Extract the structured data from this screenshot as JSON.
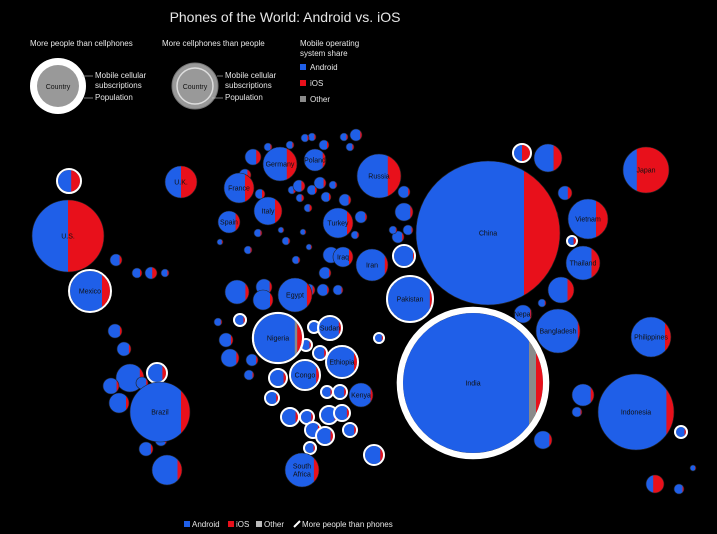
{
  "chart_data": {
    "type": "bubble-map",
    "title": "Phones of the World: Android vs. iOS",
    "legend": {
      "more_people_title": "More people than cellphones",
      "more_phones_title": "More cellphones than people",
      "os_title_line1": "Mobile operating",
      "os_title_line2": "system share",
      "sample_country": "Country",
      "mobile_line1": "Mobile cellular",
      "mobile_line2": "subscriptions",
      "population": "Population",
      "android": "Android",
      "ios": "iOS",
      "other": "Other"
    },
    "bottom_legend": {
      "android": "Android",
      "ios": "iOS",
      "other": "Other",
      "more_people": "More people than phones"
    },
    "colors": {
      "android": "#1f5fe8",
      "ios": "#e8101b",
      "other": "#8a8a8a",
      "outline": "#ffffff",
      "background": "#000000"
    },
    "countries": [
      {
        "name": "U.S.",
        "android": 0.5,
        "ios": 0.5,
        "other": 0,
        "more_people": false
      },
      {
        "name": "Mexico",
        "android": 0.8,
        "ios": 0.2,
        "other": 0,
        "more_people": true
      },
      {
        "name": "Brazil",
        "android": 0.85,
        "ios": 0.15,
        "other": 0,
        "more_people": false
      },
      {
        "name": "U.K.",
        "android": 0.5,
        "ios": 0.5,
        "other": 0,
        "more_people": false
      },
      {
        "name": "France",
        "android": 0.7,
        "ios": 0.3,
        "other": 0,
        "more_people": false
      },
      {
        "name": "Spain",
        "android": 0.8,
        "ios": 0.2,
        "other": 0,
        "more_people": false
      },
      {
        "name": "Germany",
        "android": 0.7,
        "ios": 0.3,
        "other": 0,
        "more_people": false
      },
      {
        "name": "Italy",
        "android": 0.75,
        "ios": 0.25,
        "other": 0,
        "more_people": false
      },
      {
        "name": "Poland",
        "android": 0.85,
        "ios": 0.15,
        "other": 0,
        "more_people": false
      },
      {
        "name": "Russia",
        "android": 0.7,
        "ios": 0.3,
        "other": 0,
        "more_people": false
      },
      {
        "name": "Turkey",
        "android": 0.8,
        "ios": 0.2,
        "other": 0,
        "more_people": false
      },
      {
        "name": "Iraq",
        "android": 0.8,
        "ios": 0.2,
        "other": 0,
        "more_people": false
      },
      {
        "name": "Iran",
        "android": 0.9,
        "ios": 0.1,
        "other": 0,
        "more_people": false
      },
      {
        "name": "Egypt",
        "android": 0.85,
        "ios": 0.15,
        "other": 0,
        "more_people": false
      },
      {
        "name": "Pakistan",
        "android": 0.95,
        "ios": 0.05,
        "other": 0,
        "more_people": true
      },
      {
        "name": "China",
        "android": 0.75,
        "ios": 0.25,
        "other": 0,
        "more_people": false
      },
      {
        "name": "India",
        "android": 0.9,
        "ios": 0.05,
        "other": 0.05,
        "more_people": true
      },
      {
        "name": "Nepal",
        "android": 0.9,
        "ios": 0.1,
        "other": 0,
        "more_people": false
      },
      {
        "name": "Bangladesh",
        "android": 0.95,
        "ios": 0.05,
        "other": 0,
        "more_people": false
      },
      {
        "name": "Vietnam",
        "android": 0.7,
        "ios": 0.3,
        "other": 0,
        "more_people": false
      },
      {
        "name": "Thailand",
        "android": 0.75,
        "ios": 0.25,
        "other": 0,
        "more_people": false
      },
      {
        "name": "Japan",
        "android": 0.3,
        "ios": 0.7,
        "other": 0,
        "more_people": false
      },
      {
        "name": "Philippines",
        "android": 0.85,
        "ios": 0.15,
        "other": 0,
        "more_people": false
      },
      {
        "name": "Indonesia",
        "android": 0.9,
        "ios": 0.1,
        "other": 0,
        "more_people": false
      },
      {
        "name": "Nigeria",
        "android": 0.85,
        "ios": 0.1,
        "other": 0.05,
        "more_people": true
      },
      {
        "name": "Sudan",
        "android": 0.9,
        "ios": 0.1,
        "other": 0,
        "more_people": true
      },
      {
        "name": "Ethiopia",
        "android": 0.9,
        "ios": 0.1,
        "other": 0,
        "more_people": true
      },
      {
        "name": "Congo",
        "android": 0.9,
        "ios": 0.1,
        "other": 0,
        "more_people": true
      },
      {
        "name": "Kenya",
        "android": 0.9,
        "ios": 0.1,
        "other": 0,
        "more_people": false
      },
      {
        "name": "South Africa",
        "android": 0.85,
        "ios": 0.15,
        "other": 0,
        "more_people": false
      }
    ]
  }
}
